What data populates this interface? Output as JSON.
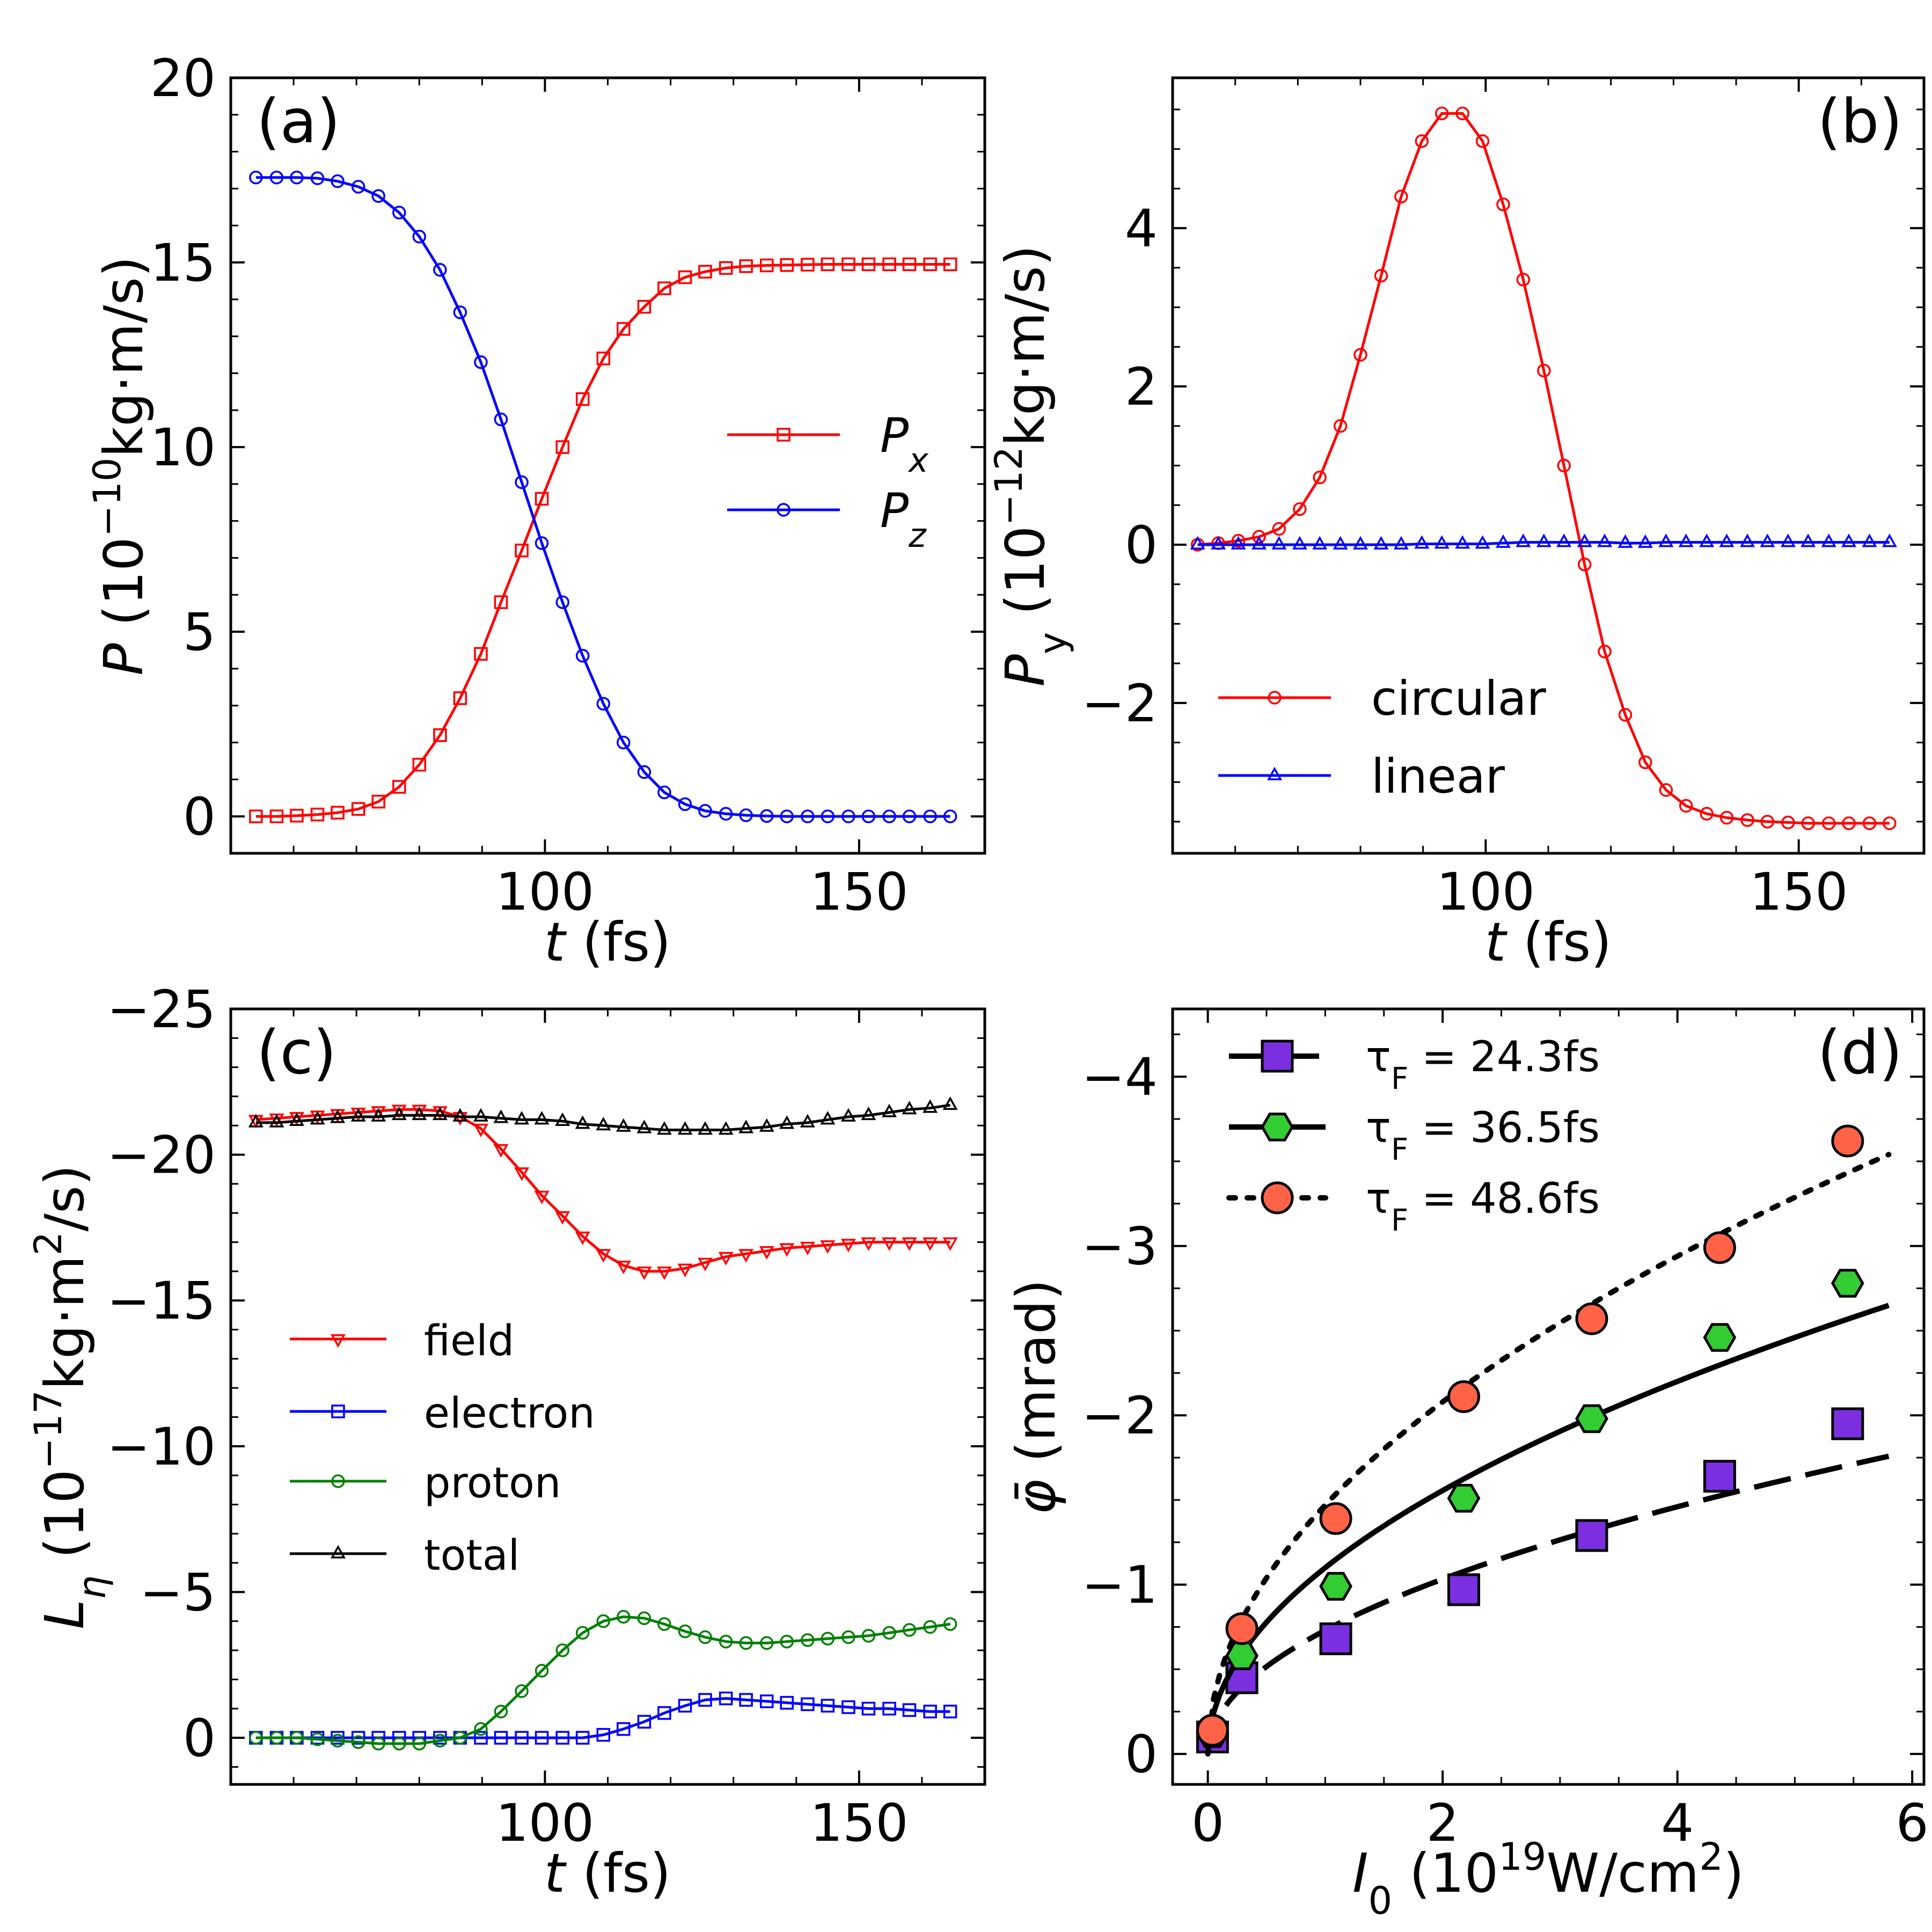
{
  "chart_data": [
    {
      "id": "a",
      "type": "line",
      "panel_label": "(a)",
      "xlabel": "t (fs)",
      "ylabel": "P (10⁻¹⁰kg·m/s)",
      "xlim": [
        50,
        170
      ],
      "ylim": [
        -1,
        20
      ],
      "xticks": [
        100,
        150
      ],
      "yticks": [
        0,
        5,
        10,
        15,
        20
      ],
      "yinverted": false,
      "legend_position": "center-right",
      "series": [
        {
          "name": "Px",
          "label_main": "P",
          "label_sub": "x",
          "color": "#ff0000",
          "marker": "square",
          "x": [
            54,
            57.3,
            60.5,
            63.8,
            67,
            70.3,
            73.5,
            76.8,
            80,
            83.3,
            86.5,
            89.8,
            93,
            96.3,
            99.5,
            102.8,
            106,
            109.3,
            112.5,
            115.8,
            119,
            122.3,
            125.5,
            128.8,
            132,
            135.3,
            138.5,
            141.8,
            145,
            148.3,
            151.5,
            154.8,
            158,
            161.3,
            164.5
          ],
          "y": [
            0,
            0,
            0.02,
            0.05,
            0.1,
            0.2,
            0.4,
            0.8,
            1.4,
            2.2,
            3.2,
            4.4,
            5.8,
            7.2,
            8.6,
            10.0,
            11.3,
            12.4,
            13.2,
            13.8,
            14.3,
            14.6,
            14.75,
            14.85,
            14.9,
            14.92,
            14.93,
            14.94,
            14.95,
            14.95,
            14.95,
            14.95,
            14.95,
            14.95,
            14.95
          ]
        },
        {
          "name": "Pz",
          "label_main": "P",
          "label_sub": "z",
          "color": "#0000ff",
          "marker": "circle",
          "x": [
            54,
            57.3,
            60.5,
            63.8,
            67,
            70.3,
            73.5,
            76.8,
            80,
            83.3,
            86.5,
            89.8,
            93,
            96.3,
            99.5,
            102.8,
            106,
            109.3,
            112.5,
            115.8,
            119,
            122.3,
            125.5,
            128.8,
            132,
            135.3,
            138.5,
            141.8,
            145,
            148.3,
            151.5,
            154.8,
            158,
            161.3,
            164.5
          ],
          "y": [
            17.3,
            17.3,
            17.3,
            17.28,
            17.2,
            17.05,
            16.8,
            16.35,
            15.7,
            14.8,
            13.65,
            12.3,
            10.75,
            9.05,
            7.4,
            5.8,
            4.35,
            3.05,
            2.0,
            1.2,
            0.65,
            0.33,
            0.15,
            0.07,
            0.03,
            0.01,
            0,
            0,
            0,
            0,
            0,
            0,
            0,
            0,
            0
          ]
        }
      ]
    },
    {
      "id": "b",
      "type": "line",
      "panel_label": "(b)",
      "xlabel": "t (fs)",
      "ylabel": "Py (10⁻¹²kg·m/s)",
      "xlim": [
        50,
        170
      ],
      "ylim": [
        -3.9,
        5.9
      ],
      "xticks": [
        100,
        150
      ],
      "yticks": [
        -2,
        0,
        2,
        4
      ],
      "ytick_labels": [
        "−2",
        "0",
        "2",
        "4"
      ],
      "yinverted": false,
      "legend_position": "lower-left",
      "series": [
        {
          "name": "circular",
          "color": "#ff0000",
          "marker": "circle",
          "x": [
            54,
            57.3,
            60.5,
            63.8,
            67,
            70.3,
            73.5,
            76.8,
            80,
            83.3,
            86.5,
            89.8,
            93,
            96.3,
            99.5,
            102.8,
            106,
            109.3,
            112.5,
            115.8,
            119,
            122.3,
            125.5,
            128.8,
            132,
            135.3,
            138.5,
            141.8,
            145,
            148.3,
            151.5,
            154.8,
            158,
            161.3,
            164.5
          ],
          "y": [
            0,
            0.02,
            0.05,
            0.1,
            0.2,
            0.45,
            0.85,
            1.5,
            2.4,
            3.4,
            4.4,
            5.1,
            5.45,
            5.45,
            5.1,
            4.3,
            3.35,
            2.2,
            1.0,
            -0.25,
            -1.35,
            -2.15,
            -2.75,
            -3.1,
            -3.3,
            -3.4,
            -3.45,
            -3.48,
            -3.5,
            -3.51,
            -3.52,
            -3.52,
            -3.52,
            -3.52,
            -3.52
          ]
        },
        {
          "name": "linear",
          "color": "#0000ff",
          "marker": "triangle-up",
          "x": [
            54,
            57.3,
            60.5,
            63.8,
            67,
            70.3,
            73.5,
            76.8,
            80,
            83.3,
            86.5,
            89.8,
            93,
            96.3,
            99.5,
            102.8,
            106,
            109.3,
            112.5,
            115.8,
            119,
            122.3,
            125.5,
            128.8,
            132,
            135.3,
            138.5,
            141.8,
            145,
            148.3,
            151.5,
            154.8,
            158,
            161.3,
            164.5
          ],
          "y": [
            0,
            0,
            0,
            0,
            0,
            0,
            0,
            0,
            0,
            0,
            0,
            0.01,
            0.01,
            0.01,
            0.01,
            0.02,
            0.03,
            0.03,
            0.03,
            0.03,
            0.03,
            0.02,
            0.02,
            0.03,
            0.03,
            0.03,
            0.03,
            0.03,
            0.03,
            0.03,
            0.03,
            0.03,
            0.03,
            0.03,
            0.03
          ]
        }
      ]
    },
    {
      "id": "c",
      "type": "line",
      "panel_label": "(c)",
      "xlabel": "t (fs)",
      "ylabel": "Lη (10⁻¹⁷kg·m²/s)",
      "xlim": [
        50,
        170
      ],
      "ylim": [
        1.6,
        -25
      ],
      "xticks": [
        100,
        150
      ],
      "yticks": [
        0,
        -5,
        -10,
        -15,
        -20,
        -25
      ],
      "ytick_labels": [
        "0",
        "−5",
        "−10",
        "−15",
        "−20",
        "−25"
      ],
      "yinverted": true,
      "legend_position": "center-left",
      "series": [
        {
          "name": "field",
          "color": "#ff0000",
          "marker": "triangle-down",
          "x": [
            54,
            57.3,
            60.5,
            63.8,
            67,
            70.3,
            73.5,
            76.8,
            80,
            83.3,
            86.5,
            89.8,
            93,
            96.3,
            99.5,
            102.8,
            106,
            109.3,
            112.5,
            115.8,
            119,
            122.3,
            125.5,
            128.8,
            132,
            135.3,
            138.5,
            141.8,
            145,
            148.3,
            151.5,
            154.8,
            158,
            161.3,
            164.5
          ],
          "y": [
            -21.2,
            -21.25,
            -21.3,
            -21.35,
            -21.4,
            -21.45,
            -21.5,
            -21.55,
            -21.55,
            -21.5,
            -21.3,
            -20.9,
            -20.2,
            -19.4,
            -18.6,
            -17.9,
            -17.2,
            -16.6,
            -16.2,
            -16.0,
            -16.0,
            -16.1,
            -16.3,
            -16.5,
            -16.6,
            -16.7,
            -16.8,
            -16.85,
            -16.9,
            -16.95,
            -17.0,
            -17.0,
            -17.0,
            -17.0,
            -17.0
          ]
        },
        {
          "name": "electron",
          "color": "#0000ff",
          "marker": "square",
          "x": [
            54,
            57.3,
            60.5,
            63.8,
            67,
            70.3,
            73.5,
            76.8,
            80,
            83.3,
            86.5,
            89.8,
            93,
            96.3,
            99.5,
            102.8,
            106,
            109.3,
            112.5,
            115.8,
            119,
            122.3,
            125.5,
            128.8,
            132,
            135.3,
            138.5,
            141.8,
            145,
            148.3,
            151.5,
            154.8,
            158,
            161.3,
            164.5
          ],
          "y": [
            0,
            0,
            0,
            0,
            0,
            0,
            0,
            0,
            0,
            0,
            0,
            0,
            0,
            0,
            0,
            0,
            0,
            -0.1,
            -0.3,
            -0.55,
            -0.85,
            -1.1,
            -1.3,
            -1.35,
            -1.3,
            -1.25,
            -1.2,
            -1.15,
            -1.1,
            -1.05,
            -1.0,
            -1.0,
            -0.95,
            -0.9,
            -0.9
          ]
        },
        {
          "name": "proton",
          "color": "#008000",
          "marker": "circle",
          "x": [
            54,
            57.3,
            60.5,
            63.8,
            67,
            70.3,
            73.5,
            76.8,
            80,
            83.3,
            86.5,
            89.8,
            93,
            96.3,
            99.5,
            102.8,
            106,
            109.3,
            112.5,
            115.8,
            119,
            122.3,
            125.5,
            128.8,
            132,
            135.3,
            138.5,
            141.8,
            145,
            148.3,
            151.5,
            154.8,
            158,
            161.3,
            164.5
          ],
          "y": [
            0,
            0,
            0,
            0.05,
            0.1,
            0.15,
            0.2,
            0.2,
            0.2,
            0.1,
            0,
            -0.3,
            -0.9,
            -1.6,
            -2.3,
            -3.0,
            -3.6,
            -4.0,
            -4.15,
            -4.1,
            -3.9,
            -3.65,
            -3.45,
            -3.3,
            -3.25,
            -3.25,
            -3.3,
            -3.35,
            -3.4,
            -3.45,
            -3.5,
            -3.6,
            -3.7,
            -3.8,
            -3.9
          ]
        },
        {
          "name": "total",
          "color": "#000000",
          "marker": "triangle-up",
          "x": [
            54,
            57.3,
            60.5,
            63.8,
            67,
            70.3,
            73.5,
            76.8,
            80,
            83.3,
            86.5,
            89.8,
            93,
            96.3,
            99.5,
            102.8,
            106,
            109.3,
            112.5,
            115.8,
            119,
            122.3,
            125.5,
            128.8,
            132,
            135.3,
            138.5,
            141.8,
            145,
            148.3,
            151.5,
            154.8,
            158,
            161.3,
            164.5
          ],
          "y": [
            -21.1,
            -21.1,
            -21.15,
            -21.2,
            -21.25,
            -21.3,
            -21.3,
            -21.35,
            -21.35,
            -21.35,
            -21.3,
            -21.3,
            -21.25,
            -21.2,
            -21.2,
            -21.15,
            -21.05,
            -21.0,
            -20.95,
            -20.9,
            -20.85,
            -20.85,
            -20.85,
            -20.85,
            -20.9,
            -20.95,
            -21.05,
            -21.1,
            -21.2,
            -21.3,
            -21.35,
            -21.45,
            -21.55,
            -21.6,
            -21.7
          ]
        }
      ]
    },
    {
      "id": "d",
      "type": "scatter",
      "panel_label": "(d)",
      "xlabel": "I₀ (10¹⁹W/cm²)",
      "ylabel": "φ̄ (mrad)",
      "xlim": [
        -0.3,
        6.1
      ],
      "ylim": [
        0.18,
        -4.4
      ],
      "xticks": [
        0,
        2,
        4,
        6
      ],
      "yticks": [
        0,
        -1,
        -2,
        -3,
        -4
      ],
      "ytick_labels": [
        "0",
        "−1",
        "−2",
        "−3",
        "−4"
      ],
      "yinverted": true,
      "legend_position": "top-left",
      "series": [
        {
          "name": "τF = 24.3fs",
          "label_main": "τ",
          "label_sub": "F",
          "label_rest": " = 24.3fs",
          "color": "#7b2fe0",
          "marker": "square",
          "linestyle": "dashed",
          "x": [
            0.04,
            0.29,
            1.09,
            2.18,
            3.27,
            4.36,
            5.45
          ],
          "y": [
            -0.1,
            -0.45,
            -0.68,
            -0.97,
            -1.29,
            -1.64,
            -1.95
          ],
          "fit_coef": -0.73
        },
        {
          "name": "τF = 36.5fs",
          "label_main": "τ",
          "label_sub": "F",
          "label_rest": " = 36.5fs",
          "color": "#33cc33",
          "marker": "hexagon",
          "linestyle": "solid",
          "x": [
            0.04,
            0.29,
            1.09,
            2.18,
            3.27,
            4.36,
            5.45
          ],
          "y": [
            -0.12,
            -0.58,
            -0.99,
            -1.51,
            -1.98,
            -2.46,
            -2.78
          ],
          "fit_coef": -1.1
        },
        {
          "name": "τF = 48.6fs",
          "label_main": "τ",
          "label_sub": "F",
          "label_rest": " = 48.6fs",
          "color": "#ff6347",
          "marker": "circle",
          "linestyle": "dotted",
          "x": [
            0.04,
            0.29,
            1.09,
            2.18,
            3.27,
            4.36,
            5.45
          ],
          "y": [
            -0.14,
            -0.74,
            -1.39,
            -2.11,
            -2.57,
            -2.99,
            -3.62
          ],
          "fit_coef": -1.47
        }
      ]
    }
  ]
}
